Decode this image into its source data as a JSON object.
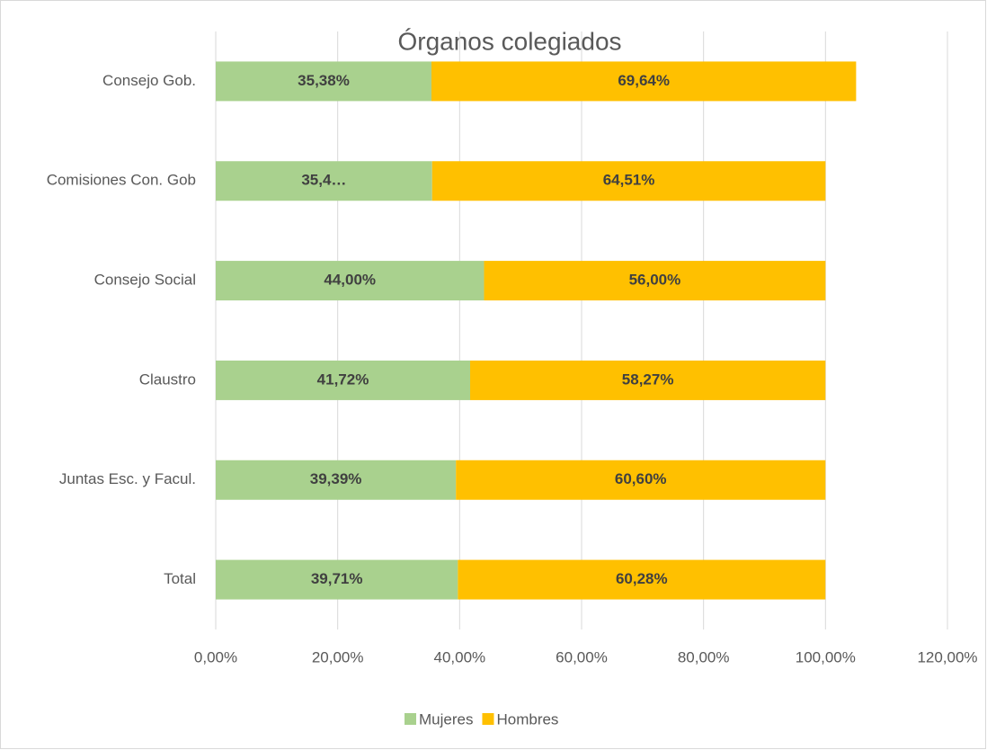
{
  "chart_data": {
    "type": "stacked-bar-horizontal",
    "title": "Órganos colegiados",
    "categories": [
      "Consejo Gob.",
      "Comisiones Con. Gob",
      "Consejo Social",
      "Claustro",
      "Juntas Esc. y Facul.",
      "Total"
    ],
    "series": [
      {
        "name": "Mujeres",
        "color": "#a9d18e",
        "values": [
          35.38,
          35.49,
          44.0,
          41.72,
          39.39,
          39.71
        ],
        "value_labels": [
          "35,38%",
          "35,4…",
          "44,00%",
          "41,72%",
          "39,39%",
          "39,71%"
        ]
      },
      {
        "name": "Hombres",
        "color": "#ffc000",
        "values": [
          69.64,
          64.51,
          56.0,
          58.27,
          60.6,
          60.28
        ],
        "value_labels": [
          "69,64%",
          "64,51%",
          "56,00%",
          "58,27%",
          "60,60%",
          "60,28%"
        ]
      }
    ],
    "xlim": [
      0,
      120
    ],
    "xticks": [
      {
        "value": 0,
        "label": "0,00%"
      },
      {
        "value": 20,
        "label": "20,00%"
      },
      {
        "value": 40,
        "label": "40,00%"
      },
      {
        "value": 60,
        "label": "60,00%"
      },
      {
        "value": 80,
        "label": "80,00%"
      },
      {
        "value": 100,
        "label": "100,00%"
      },
      {
        "value": 120,
        "label": "120,00%"
      }
    ],
    "grid": true,
    "legend": "bottom"
  }
}
